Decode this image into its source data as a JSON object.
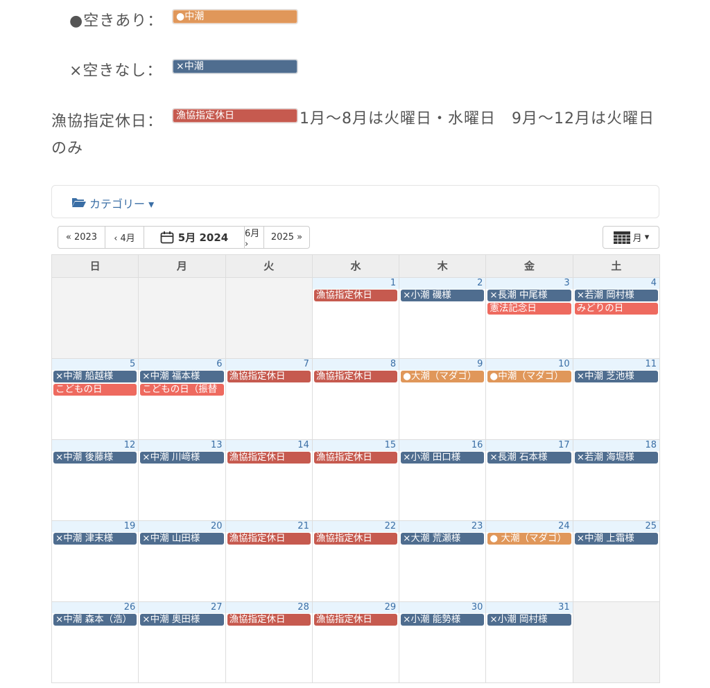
{
  "legend": [
    {
      "label": "●空きあり：",
      "chip": "●中潮",
      "color": "#e0975a"
    },
    {
      "label": "×空きなし：",
      "chip": "×中潮",
      "color": "#4f6d8f"
    },
    {
      "label": "漁協指定休日：",
      "chip": "漁協指定休日",
      "color": "#c65a4f",
      "note": "1月〜8月は火曜日・水曜日　9月〜12月は火曜日のみ"
    }
  ],
  "category_button": "カテゴリー",
  "nav": {
    "prev_year": "« 2023",
    "prev_month": "‹ 4月",
    "current": "5月 2024",
    "next_month": "6月 ›",
    "next_year": "2025 »",
    "view": "月"
  },
  "weekdays": [
    "日",
    "月",
    "火",
    "水",
    "木",
    "金",
    "土"
  ],
  "weeks": [
    {
      "days": [
        {
          "day": null,
          "events": []
        },
        {
          "day": null,
          "events": []
        },
        {
          "day": null,
          "events": []
        },
        {
          "day": 1,
          "events": [
            {
              "text": "漁協指定休日",
              "color": "#c65a4f"
            }
          ]
        },
        {
          "day": 2,
          "events": [
            {
              "text": "×小潮 磯様",
              "color": "#4f6d8f"
            }
          ]
        },
        {
          "day": 3,
          "events": [
            {
              "text": "×長潮 中尾様",
              "color": "#4f6d8f"
            },
            {
              "text": "憲法記念日",
              "color": "#ee6a5f"
            }
          ]
        },
        {
          "day": 4,
          "events": [
            {
              "text": "×若潮 岡村様",
              "color": "#4f6d8f"
            },
            {
              "text": "みどりの日",
              "color": "#ee6a5f"
            }
          ]
        }
      ]
    },
    {
      "days": [
        {
          "day": 5,
          "events": [
            {
              "text": "×中潮 船越様",
              "color": "#4f6d8f"
            },
            {
              "text": "こどもの日",
              "color": "#ee6a5f"
            }
          ]
        },
        {
          "day": 6,
          "events": [
            {
              "text": "×中潮 福本様",
              "color": "#4f6d8f"
            },
            {
              "text": "こどもの日（振替",
              "color": "#ee6a5f"
            }
          ]
        },
        {
          "day": 7,
          "events": [
            {
              "text": "漁協指定休日",
              "color": "#c65a4f"
            }
          ]
        },
        {
          "day": 8,
          "events": [
            {
              "text": "漁協指定休日",
              "color": "#c65a4f"
            }
          ]
        },
        {
          "day": 9,
          "events": [
            {
              "text": "●大潮（マダゴ）",
              "color": "#e0975a"
            }
          ]
        },
        {
          "day": 10,
          "events": [
            {
              "text": "●中潮（マダゴ）",
              "color": "#e0975a"
            }
          ]
        },
        {
          "day": 11,
          "events": [
            {
              "text": "×中潮 芝池様",
              "color": "#4f6d8f"
            }
          ]
        }
      ]
    },
    {
      "days": [
        {
          "day": 12,
          "events": [
            {
              "text": "×中潮 後藤様",
              "color": "#4f6d8f"
            }
          ]
        },
        {
          "day": 13,
          "events": [
            {
              "text": "×中潮 川﨑様",
              "color": "#4f6d8f"
            }
          ]
        },
        {
          "day": 14,
          "events": [
            {
              "text": "漁協指定休日",
              "color": "#c65a4f"
            }
          ]
        },
        {
          "day": 15,
          "events": [
            {
              "text": "漁協指定休日",
              "color": "#c65a4f"
            }
          ]
        },
        {
          "day": 16,
          "events": [
            {
              "text": "×小潮 田口様",
              "color": "#4f6d8f"
            }
          ]
        },
        {
          "day": 17,
          "events": [
            {
              "text": "×長潮 石本様",
              "color": "#4f6d8f"
            }
          ]
        },
        {
          "day": 18,
          "events": [
            {
              "text": "×若潮 海堀様",
              "color": "#4f6d8f"
            }
          ]
        }
      ]
    },
    {
      "days": [
        {
          "day": 19,
          "events": [
            {
              "text": "×中潮 津末様",
              "color": "#4f6d8f"
            }
          ]
        },
        {
          "day": 20,
          "events": [
            {
              "text": "×中潮 山田様",
              "color": "#4f6d8f"
            }
          ]
        },
        {
          "day": 21,
          "events": [
            {
              "text": "漁協指定休日",
              "color": "#c65a4f"
            }
          ]
        },
        {
          "day": 22,
          "events": [
            {
              "text": "漁協指定休日",
              "color": "#c65a4f"
            }
          ]
        },
        {
          "day": 23,
          "events": [
            {
              "text": "×大潮 荒瀬様",
              "color": "#4f6d8f"
            }
          ]
        },
        {
          "day": 24,
          "events": [
            {
              "text": "● 大潮（マダゴ）",
              "color": "#e0975a"
            }
          ]
        },
        {
          "day": 25,
          "events": [
            {
              "text": "×中潮 上霜様",
              "color": "#4f6d8f"
            }
          ]
        }
      ]
    },
    {
      "days": [
        {
          "day": 26,
          "events": [
            {
              "text": "×中潮 森本（浩）",
              "color": "#4f6d8f"
            }
          ]
        },
        {
          "day": 27,
          "events": [
            {
              "text": "×中潮 奥田様",
              "color": "#4f6d8f"
            }
          ]
        },
        {
          "day": 28,
          "events": [
            {
              "text": "漁協指定休日",
              "color": "#c65a4f"
            }
          ]
        },
        {
          "day": 29,
          "events": [
            {
              "text": "漁協指定休日",
              "color": "#c65a4f"
            }
          ]
        },
        {
          "day": 30,
          "events": [
            {
              "text": "×小潮 能勢様",
              "color": "#4f6d8f"
            }
          ]
        },
        {
          "day": 31,
          "events": [
            {
              "text": "×小潮 岡村様",
              "color": "#4f6d8f"
            }
          ]
        },
        {
          "day": null,
          "events": []
        }
      ]
    }
  ]
}
